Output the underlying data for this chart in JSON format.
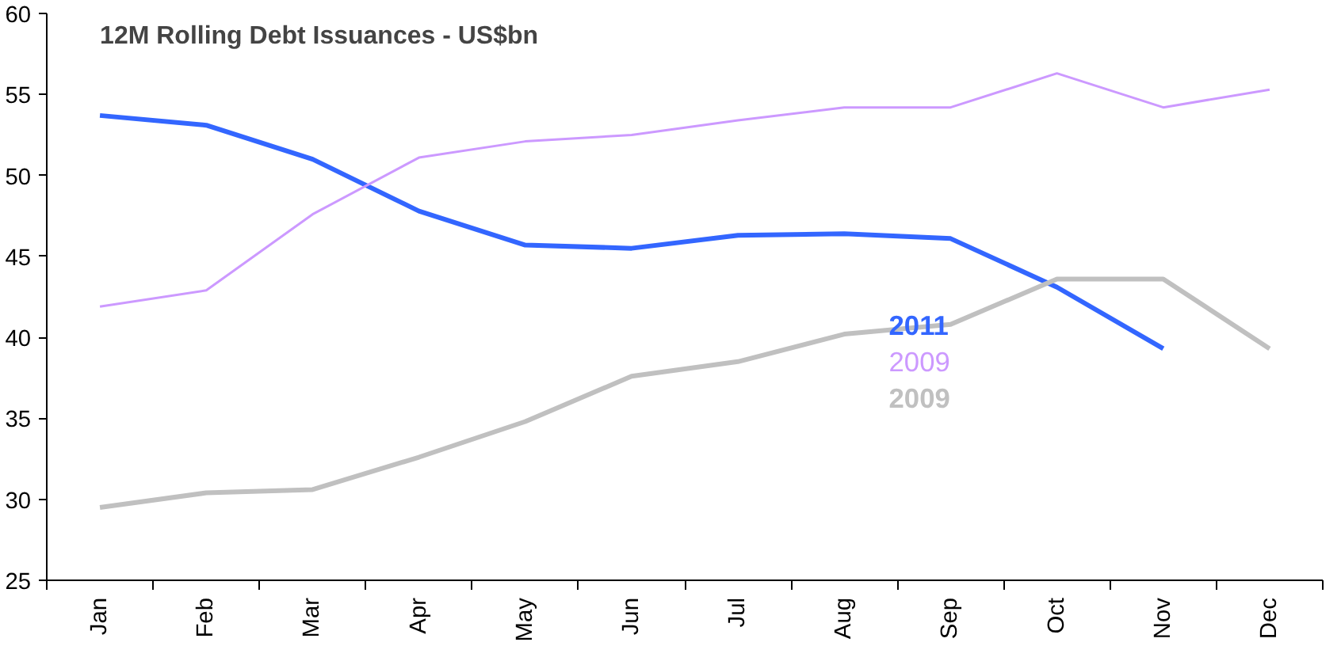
{
  "chart_data": {
    "type": "line",
    "title": "12M Rolling Debt Issuances - US$bn",
    "categories": [
      "Jan",
      "Feb",
      "Mar",
      "Apr",
      "May",
      "Jun",
      "Jul",
      "Aug",
      "Sep",
      "Oct",
      "Nov",
      "Dec"
    ],
    "series": [
      {
        "name": "2011",
        "color": "#3366ff",
        "values": [
          53.7,
          53.1,
          51.0,
          47.8,
          45.7,
          45.5,
          46.3,
          46.4,
          46.1,
          43.1,
          39.3,
          null
        ]
      },
      {
        "name": "2009",
        "color": "#cc99ff",
        "values": [
          41.9,
          42.9,
          47.6,
          51.1,
          52.1,
          52.5,
          53.4,
          54.2,
          54.2,
          56.3,
          54.2,
          55.3
        ]
      },
      {
        "name": "2009",
        "color": "#c0c0c0",
        "values": [
          29.5,
          30.4,
          30.6,
          32.6,
          34.8,
          37.6,
          38.5,
          40.2,
          40.8,
          43.6,
          43.6,
          39.3
        ]
      }
    ],
    "ylim": [
      25,
      60
    ],
    "yticks": [
      25,
      30,
      35,
      40,
      45,
      50,
      55,
      60
    ],
    "grid": false,
    "legend": "bottom right",
    "marker": "none",
    "line_style": "solid"
  }
}
